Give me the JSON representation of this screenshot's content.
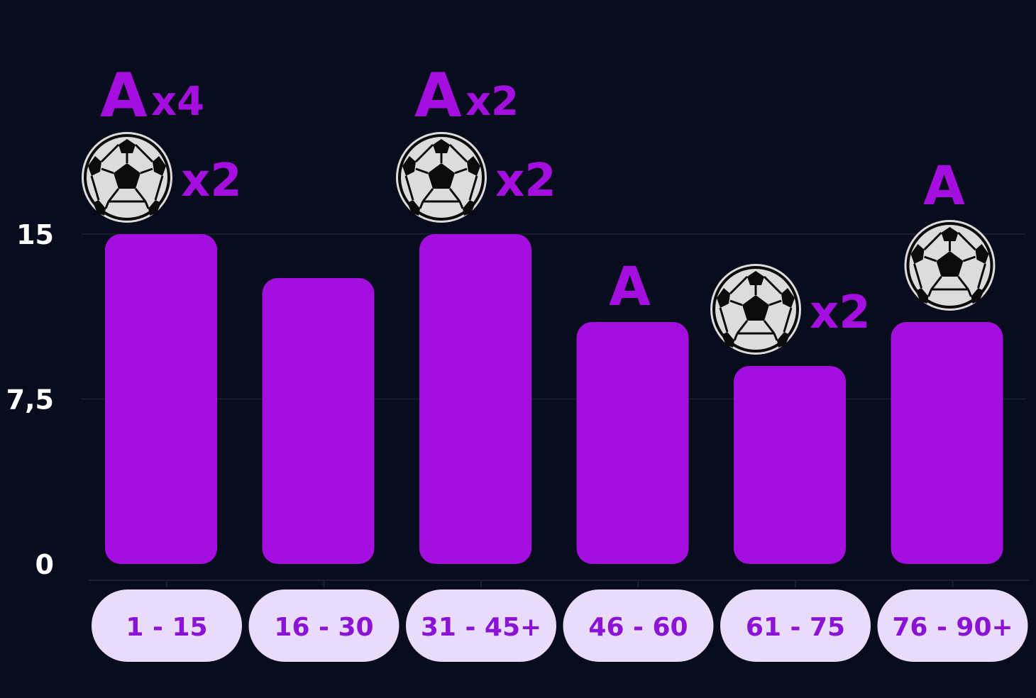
{
  "chart_data": {
    "type": "bar",
    "categories": [
      "1 - 15",
      "16 - 30",
      "31 - 45+",
      "46 - 60",
      "61 - 75",
      "76 - 90+"
    ],
    "values": [
      15,
      13,
      15,
      11,
      9,
      11
    ],
    "ylim": [
      0,
      15
    ],
    "yticks": [
      {
        "value": 0,
        "label": "0"
      },
      {
        "value": 7.5,
        "label": "7,5"
      },
      {
        "value": 15,
        "label": "15"
      }
    ],
    "grid": true,
    "annotations": [
      {
        "category": "1 - 15",
        "assist_label": "A",
        "assist_multiplier": "x4",
        "goal_multiplier": "x2"
      },
      {
        "category": "16 - 30",
        "assist_label": "",
        "assist_multiplier": "",
        "goal_multiplier": null
      },
      {
        "category": "31 - 45+",
        "assist_label": "A",
        "assist_multiplier": "x2",
        "goal_multiplier": "x2"
      },
      {
        "category": "46 - 60",
        "assist_label": "A",
        "assist_multiplier": "",
        "goal_multiplier": null
      },
      {
        "category": "61 - 75",
        "assist_label": "",
        "assist_multiplier": "",
        "goal_multiplier": "x2"
      },
      {
        "category": "76 - 90+",
        "assist_label": "A",
        "assist_multiplier": "",
        "goal_multiplier": ""
      }
    ]
  },
  "colors": {
    "background": "#090c1c",
    "bar": "#a40fe0",
    "annotation": "#a40fe0",
    "pill_background": "#e8dcfa",
    "pill_text": "#8a13d6",
    "axis_text": "#ffffff",
    "ball": "#dcdcdc",
    "ball_patch": "#0b0b0b"
  },
  "icons": {
    "goal": "soccer-ball-icon"
  }
}
